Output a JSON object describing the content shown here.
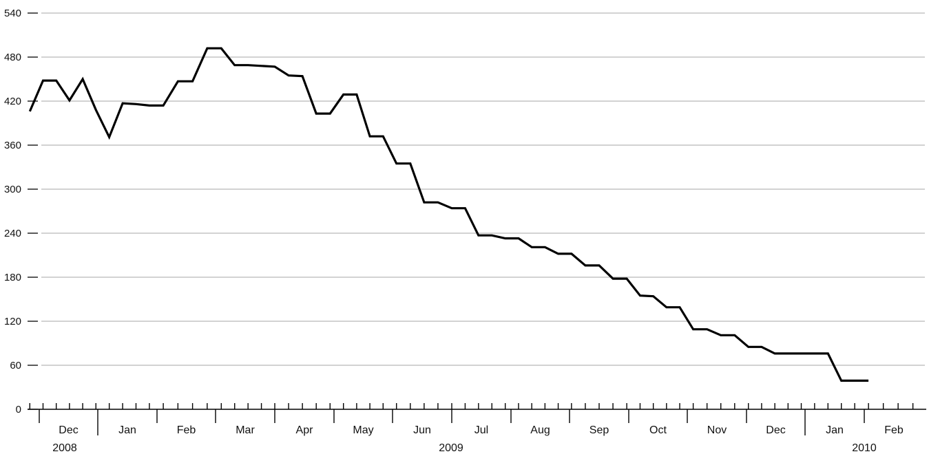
{
  "chart_data": {
    "type": "line",
    "title": "",
    "xlabel": "",
    "ylabel": "",
    "ylim": [
      0,
      540
    ],
    "yticks": [
      0,
      60,
      120,
      180,
      240,
      300,
      360,
      420,
      480,
      540
    ],
    "grid": true,
    "x_axis": {
      "months": [
        "Dec",
        "Jan",
        "Feb",
        "Mar",
        "Apr",
        "May",
        "Jun",
        "Jul",
        "Aug",
        "Sep",
        "Oct",
        "Nov",
        "Dec",
        "Jan",
        "Feb"
      ],
      "years": [
        "2008",
        "2009",
        "2010"
      ]
    },
    "series": [
      {
        "color": "#000000",
        "x": [
          "2008-11-26",
          "2008-12-03",
          "2008-12-10",
          "2008-12-17",
          "2008-12-24",
          "2008-12-31",
          "2009-01-07",
          "2009-01-14",
          "2009-01-21",
          "2009-01-28",
          "2009-02-04",
          "2009-02-11",
          "2009-02-18",
          "2009-02-25",
          "2009-03-04",
          "2009-03-11",
          "2009-03-18",
          "2009-03-25",
          "2009-04-01",
          "2009-04-08",
          "2009-04-15",
          "2009-04-22",
          "2009-04-29",
          "2009-05-06",
          "2009-05-13",
          "2009-05-20",
          "2009-05-27",
          "2009-06-03",
          "2009-06-10",
          "2009-06-17",
          "2009-06-24",
          "2009-07-01",
          "2009-07-08",
          "2009-07-15",
          "2009-07-22",
          "2009-07-29",
          "2009-08-05",
          "2009-08-12",
          "2009-08-19",
          "2009-08-26",
          "2009-09-02",
          "2009-09-09",
          "2009-09-16",
          "2009-09-23",
          "2009-09-30",
          "2009-10-07",
          "2009-10-14",
          "2009-10-21",
          "2009-10-28",
          "2009-11-04",
          "2009-11-11",
          "2009-11-18",
          "2009-11-25",
          "2009-12-02",
          "2009-12-09",
          "2009-12-16",
          "2009-12-23",
          "2009-12-30",
          "2010-01-06",
          "2010-01-13",
          "2010-01-20",
          "2010-01-27",
          "2010-02-03"
        ],
        "values": [
          406,
          448,
          448,
          421,
          450,
          408,
          371,
          417,
          416,
          414,
          414,
          447,
          447,
          492,
          492,
          469,
          469,
          468,
          467,
          455,
          454,
          403,
          403,
          429,
          429,
          372,
          372,
          335,
          335,
          282,
          282,
          274,
          274,
          237,
          237,
          233,
          233,
          221,
          221,
          212,
          212,
          196,
          196,
          178,
          178,
          155,
          154,
          139,
          139,
          109,
          109,
          101,
          101,
          85,
          85,
          76,
          76,
          76,
          76,
          76,
          39,
          39,
          39
        ]
      }
    ]
  }
}
